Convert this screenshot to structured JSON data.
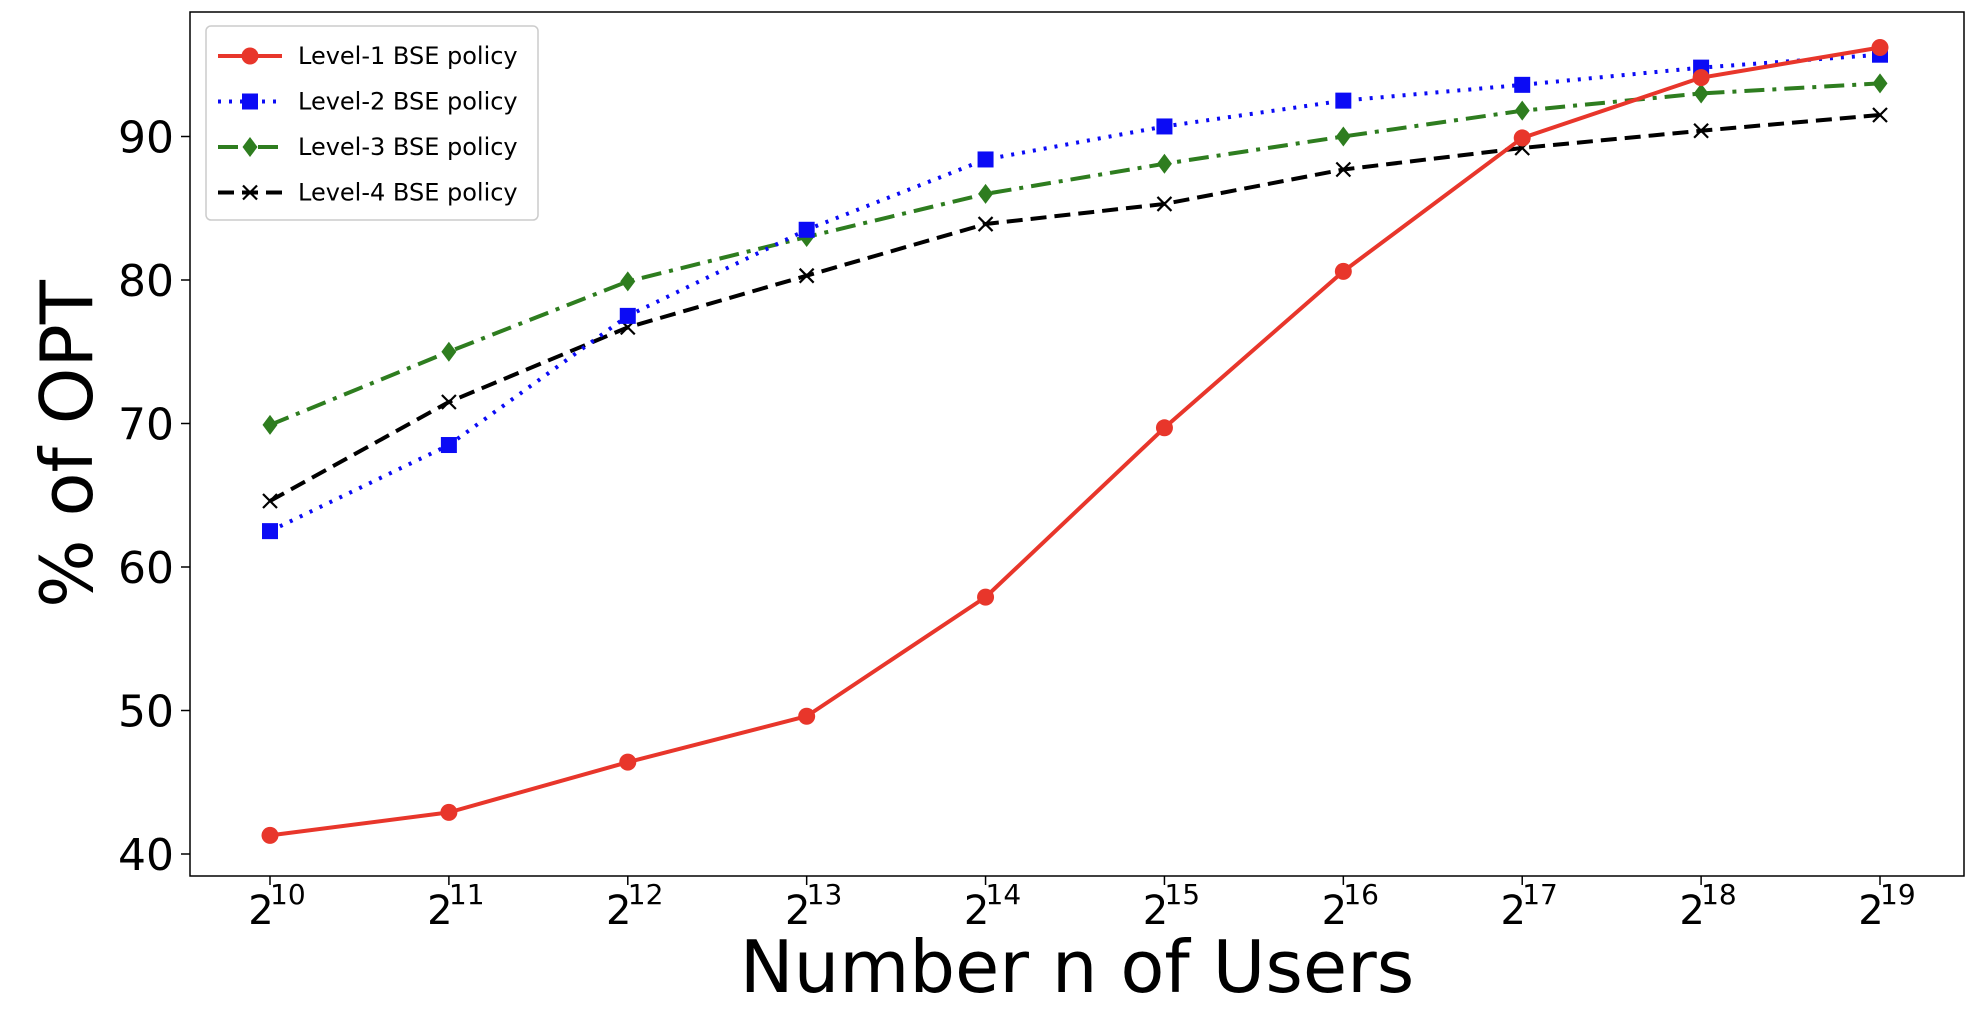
{
  "chart_data": {
    "type": "line",
    "title": "",
    "xlabel": "Number n of Users",
    "ylabel": "% of OPT",
    "x_base": "2",
    "x_exponents": [
      "10",
      "11",
      "12",
      "13",
      "14",
      "15",
      "16",
      "17",
      "18",
      "19"
    ],
    "x_values": [
      1024,
      2048,
      4096,
      8192,
      16384,
      32768,
      65536,
      131072,
      262144,
      524288
    ],
    "y_ticks": [
      "40",
      "50",
      "60",
      "70",
      "80",
      "90"
    ],
    "ylim": [
      38.5,
      98.5
    ],
    "grid": false,
    "legend_position": "top-left",
    "series": [
      {
        "name": "Level-1 BSE policy",
        "color": "#e8362b",
        "line_style": "solid",
        "marker": "circle",
        "values": [
          41.3,
          42.9,
          46.4,
          49.6,
          57.9,
          69.7,
          80.6,
          89.9,
          94.1,
          96.2
        ]
      },
      {
        "name": "Level-2 BSE policy",
        "color": "#0b0bf5",
        "line_style": "dotted",
        "marker": "square",
        "values": [
          62.5,
          68.5,
          77.5,
          83.5,
          88.4,
          90.7,
          92.5,
          93.6,
          94.8,
          95.7
        ]
      },
      {
        "name": "Level-3 BSE policy",
        "color": "#2e7d1f",
        "line_style": "dashdot",
        "marker": "diamond",
        "values": [
          69.9,
          75.0,
          79.9,
          83.0,
          86.0,
          88.1,
          90.0,
          91.8,
          93.0,
          93.7
        ]
      },
      {
        "name": "Level-4 BSE policy",
        "color": "#000000",
        "line_style": "dashed",
        "marker": "x",
        "values": [
          64.6,
          71.5,
          76.7,
          80.3,
          83.9,
          85.3,
          87.7,
          89.2,
          90.4,
          91.5
        ]
      }
    ]
  }
}
